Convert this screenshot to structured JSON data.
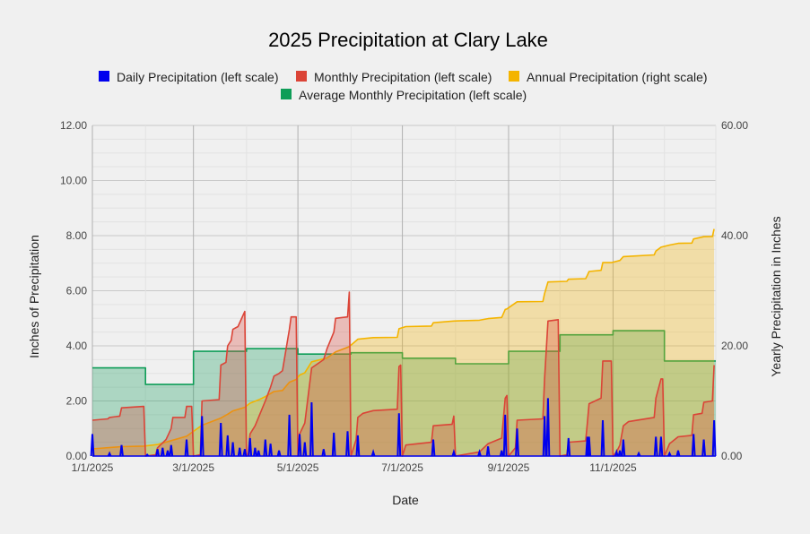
{
  "chart_data": {
    "type": "area",
    "title": "2025 Precipitation at Clary Lake",
    "xlabel": "Date",
    "ylabel_left": "Inches of Precipitation",
    "ylabel_right": "Yearly Precipitation in Inches",
    "left_axis": {
      "min": 0,
      "max": 12,
      "ticks": [
        "0.00",
        "2.00",
        "4.00",
        "6.00",
        "8.00",
        "10.00",
        "12.00"
      ]
    },
    "right_axis": {
      "min": 0,
      "max": 60,
      "ticks": [
        "0.00",
        "20.00",
        "40.00",
        "60.00"
      ]
    },
    "x_range": [
      "2025-01-01",
      "2025-12-31"
    ],
    "x_ticks": [
      {
        "date": "2025-01-01",
        "label": "1/1/2025"
      },
      {
        "date": "2025-03-01",
        "label": "3/1/2025"
      },
      {
        "date": "2025-05-01",
        "label": "5/1/2025"
      },
      {
        "date": "2025-07-01",
        "label": "7/1/2025"
      },
      {
        "date": "2025-09-01",
        "label": "9/1/2025"
      },
      {
        "date": "2025-11-01",
        "label": "11/1/2025"
      }
    ],
    "grid": true,
    "legend_position": "top",
    "series": [
      {
        "name": "Daily Precipitation (left scale)",
        "color": "#0000ee",
        "axis": "left",
        "points": [
          [
            "2025-01-01",
            0.8
          ],
          [
            "2025-01-11",
            0.1
          ],
          [
            "2025-01-18",
            0.4
          ],
          [
            "2025-02-02",
            0.05
          ],
          [
            "2025-02-08",
            0.25
          ],
          [
            "2025-02-11",
            0.3
          ],
          [
            "2025-02-14",
            0.2
          ],
          [
            "2025-02-16",
            0.4
          ],
          [
            "2025-02-25",
            0.6
          ],
          [
            "2025-03-06",
            1.45
          ],
          [
            "2025-03-17",
            1.2
          ],
          [
            "2025-03-21",
            0.75
          ],
          [
            "2025-03-24",
            0.5
          ],
          [
            "2025-03-28",
            0.3
          ],
          [
            "2025-03-31",
            0.25
          ],
          [
            "2025-04-03",
            0.65
          ],
          [
            "2025-04-06",
            0.3
          ],
          [
            "2025-04-08",
            0.2
          ],
          [
            "2025-04-12",
            0.6
          ],
          [
            "2025-04-15",
            0.45
          ],
          [
            "2025-04-20",
            0.2
          ],
          [
            "2025-04-26",
            1.5
          ],
          [
            "2025-05-02",
            0.8
          ],
          [
            "2025-05-05",
            0.5
          ],
          [
            "2025-05-09",
            1.95
          ],
          [
            "2025-05-16",
            0.25
          ],
          [
            "2025-05-22",
            0.85
          ],
          [
            "2025-05-30",
            0.9
          ],
          [
            "2025-06-05",
            0.75
          ],
          [
            "2025-06-14",
            0.15
          ],
          [
            "2025-06-29",
            1.55
          ],
          [
            "2025-07-19",
            0.6
          ],
          [
            "2025-07-31",
            0.15
          ],
          [
            "2025-08-15",
            0.15
          ],
          [
            "2025-08-20",
            0.35
          ],
          [
            "2025-08-28",
            0.2
          ],
          [
            "2025-08-30",
            1.5
          ],
          [
            "2025-09-06",
            1.0
          ],
          [
            "2025-09-22",
            1.45
          ],
          [
            "2025-09-24",
            2.1
          ],
          [
            "2025-10-06",
            0.65
          ],
          [
            "2025-10-17",
            0.7
          ],
          [
            "2025-10-18",
            0.7
          ],
          [
            "2025-10-26",
            1.3
          ],
          [
            "2025-11-03",
            0.15
          ],
          [
            "2025-11-05",
            0.2
          ],
          [
            "2025-11-07",
            0.6
          ],
          [
            "2025-11-16",
            0.1
          ],
          [
            "2025-11-26",
            0.7
          ],
          [
            "2025-11-29",
            0.7
          ],
          [
            "2025-12-04",
            0.1
          ],
          [
            "2025-12-09",
            0.2
          ],
          [
            "2025-12-18",
            0.8
          ],
          [
            "2025-12-24",
            0.6
          ],
          [
            "2025-12-30",
            1.3
          ]
        ]
      },
      {
        "name": "Monthly Precipitation (left scale)",
        "color": "#db4437",
        "axis": "left",
        "points": [
          [
            "2025-01-01",
            1.3
          ],
          [
            "2025-01-10",
            1.35
          ],
          [
            "2025-01-11",
            1.4
          ],
          [
            "2025-01-17",
            1.45
          ],
          [
            "2025-01-18",
            1.75
          ],
          [
            "2025-01-31",
            1.8
          ],
          [
            "2025-02-01",
            0.0
          ],
          [
            "2025-02-07",
            0.05
          ],
          [
            "2025-02-08",
            0.3
          ],
          [
            "2025-02-13",
            0.6
          ],
          [
            "2025-02-16",
            1.0
          ],
          [
            "2025-02-17",
            1.4
          ],
          [
            "2025-02-24",
            1.4
          ],
          [
            "2025-02-25",
            1.8
          ],
          [
            "2025-02-28",
            1.8
          ],
          [
            "2025-03-01",
            0.0
          ],
          [
            "2025-03-05",
            0.05
          ],
          [
            "2025-03-06",
            2.0
          ],
          [
            "2025-03-16",
            2.05
          ],
          [
            "2025-03-17",
            3.3
          ],
          [
            "2025-03-20",
            3.4
          ],
          [
            "2025-03-21",
            4.0
          ],
          [
            "2025-03-23",
            4.2
          ],
          [
            "2025-03-24",
            4.6
          ],
          [
            "2025-03-27",
            4.7
          ],
          [
            "2025-03-31",
            5.25
          ],
          [
            "2025-04-01",
            0.0
          ],
          [
            "2025-04-02",
            0.1
          ],
          [
            "2025-04-03",
            0.8
          ],
          [
            "2025-04-06",
            1.1
          ],
          [
            "2025-04-08",
            1.4
          ],
          [
            "2025-04-12",
            2.0
          ],
          [
            "2025-04-15",
            2.5
          ],
          [
            "2025-04-17",
            2.9
          ],
          [
            "2025-04-20",
            3.0
          ],
          [
            "2025-04-22",
            3.1
          ],
          [
            "2025-04-26",
            4.6
          ],
          [
            "2025-04-27",
            5.05
          ],
          [
            "2025-04-30",
            5.05
          ],
          [
            "2025-05-01",
            0.0
          ],
          [
            "2025-05-02",
            0.8
          ],
          [
            "2025-05-05",
            1.2
          ],
          [
            "2025-05-09",
            3.2
          ],
          [
            "2025-05-16",
            3.5
          ],
          [
            "2025-05-18",
            3.9
          ],
          [
            "2025-05-22",
            4.5
          ],
          [
            "2025-05-23",
            5.0
          ],
          [
            "2025-05-30",
            5.05
          ],
          [
            "2025-05-31",
            5.95
          ],
          [
            "2025-06-01",
            0.0
          ],
          [
            "2025-06-04",
            0.6
          ],
          [
            "2025-06-05",
            1.4
          ],
          [
            "2025-06-08",
            1.55
          ],
          [
            "2025-06-14",
            1.65
          ],
          [
            "2025-06-28",
            1.7
          ],
          [
            "2025-06-29",
            3.25
          ],
          [
            "2025-06-30",
            3.3
          ],
          [
            "2025-07-01",
            0.0
          ],
          [
            "2025-07-03",
            0.4
          ],
          [
            "2025-07-18",
            0.5
          ],
          [
            "2025-07-19",
            1.1
          ],
          [
            "2025-07-30",
            1.15
          ],
          [
            "2025-07-31",
            1.45
          ],
          [
            "2025-08-01",
            0.0
          ],
          [
            "2025-08-15",
            0.15
          ],
          [
            "2025-08-20",
            0.45
          ],
          [
            "2025-08-28",
            0.65
          ],
          [
            "2025-08-30",
            2.1
          ],
          [
            "2025-08-31",
            2.2
          ],
          [
            "2025-09-01",
            0.0
          ],
          [
            "2025-09-05",
            0.3
          ],
          [
            "2025-09-06",
            1.3
          ],
          [
            "2025-09-21",
            1.35
          ],
          [
            "2025-09-22",
            2.8
          ],
          [
            "2025-09-24",
            4.9
          ],
          [
            "2025-09-30",
            4.95
          ],
          [
            "2025-10-01",
            0.0
          ],
          [
            "2025-10-05",
            0.05
          ],
          [
            "2025-10-06",
            0.5
          ],
          [
            "2025-10-16",
            0.55
          ],
          [
            "2025-10-17",
            1.2
          ],
          [
            "2025-10-18",
            1.9
          ],
          [
            "2025-10-25",
            2.1
          ],
          [
            "2025-10-26",
            3.45
          ],
          [
            "2025-10-31",
            3.45
          ],
          [
            "2025-11-01",
            0.0
          ],
          [
            "2025-11-03",
            0.15
          ],
          [
            "2025-11-05",
            0.4
          ],
          [
            "2025-11-07",
            1.1
          ],
          [
            "2025-11-10",
            1.25
          ],
          [
            "2025-11-25",
            1.4
          ],
          [
            "2025-11-26",
            2.1
          ],
          [
            "2025-11-29",
            2.8
          ],
          [
            "2025-11-30",
            2.8
          ],
          [
            "2025-12-01",
            0.0
          ],
          [
            "2025-12-04",
            0.45
          ],
          [
            "2025-12-09",
            0.7
          ],
          [
            "2025-12-17",
            0.75
          ],
          [
            "2025-12-18",
            1.5
          ],
          [
            "2025-12-23",
            1.55
          ],
          [
            "2025-12-24",
            1.95
          ],
          [
            "2025-12-29",
            2.0
          ],
          [
            "2025-12-30",
            3.3
          ]
        ]
      },
      {
        "name": "Annual Precipitation (right scale)",
        "color": "#f4b400",
        "axis": "right",
        "points": [
          [
            "2025-01-01",
            1.3
          ],
          [
            "2025-01-18",
            1.7
          ],
          [
            "2025-01-31",
            1.8
          ],
          [
            "2025-02-08",
            2.1
          ],
          [
            "2025-02-16",
            2.8
          ],
          [
            "2025-02-25",
            3.6
          ],
          [
            "2025-03-06",
            5.6
          ],
          [
            "2025-03-17",
            6.9
          ],
          [
            "2025-03-21",
            7.6
          ],
          [
            "2025-03-24",
            8.2
          ],
          [
            "2025-03-31",
            8.85
          ],
          [
            "2025-04-03",
            9.6
          ],
          [
            "2025-04-08",
            10.2
          ],
          [
            "2025-04-12",
            10.8
          ],
          [
            "2025-04-17",
            11.7
          ],
          [
            "2025-04-22",
            11.9
          ],
          [
            "2025-04-26",
            13.4
          ],
          [
            "2025-04-30",
            13.9
          ],
          [
            "2025-05-02",
            14.7
          ],
          [
            "2025-05-05",
            15.1
          ],
          [
            "2025-05-09",
            17.1
          ],
          [
            "2025-05-18",
            17.8
          ],
          [
            "2025-05-23",
            18.9
          ],
          [
            "2025-05-31",
            19.85
          ],
          [
            "2025-06-05",
            21.2
          ],
          [
            "2025-06-14",
            21.5
          ],
          [
            "2025-06-28",
            21.55
          ],
          [
            "2025-06-29",
            23.1
          ],
          [
            "2025-07-03",
            23.5
          ],
          [
            "2025-07-18",
            23.6
          ],
          [
            "2025-07-19",
            24.2
          ],
          [
            "2025-07-31",
            24.5
          ],
          [
            "2025-08-15",
            24.65
          ],
          [
            "2025-08-20",
            24.95
          ],
          [
            "2025-08-28",
            25.15
          ],
          [
            "2025-08-30",
            26.6
          ],
          [
            "2025-08-31",
            26.7
          ],
          [
            "2025-09-06",
            28.0
          ],
          [
            "2025-09-21",
            28.05
          ],
          [
            "2025-09-22",
            29.5
          ],
          [
            "2025-09-24",
            31.6
          ],
          [
            "2025-10-05",
            31.7
          ],
          [
            "2025-10-06",
            32.1
          ],
          [
            "2025-10-16",
            32.2
          ],
          [
            "2025-10-17",
            32.8
          ],
          [
            "2025-10-18",
            33.5
          ],
          [
            "2025-10-25",
            33.7
          ],
          [
            "2025-10-26",
            35.1
          ],
          [
            "2025-10-31",
            35.1
          ],
          [
            "2025-11-05",
            35.5
          ],
          [
            "2025-11-07",
            36.2
          ],
          [
            "2025-11-25",
            36.5
          ],
          [
            "2025-11-26",
            37.2
          ],
          [
            "2025-11-29",
            37.9
          ],
          [
            "2025-12-04",
            38.3
          ],
          [
            "2025-12-09",
            38.6
          ],
          [
            "2025-12-17",
            38.65
          ],
          [
            "2025-12-18",
            39.4
          ],
          [
            "2025-12-24",
            39.8
          ],
          [
            "2025-12-29",
            39.85
          ],
          [
            "2025-12-30",
            41.2
          ]
        ]
      },
      {
        "name": "Average Monthly Precipitation (left scale)",
        "color": "#0f9d58",
        "axis": "left",
        "step": true,
        "points": [
          [
            "2025-01-01",
            3.2
          ],
          [
            "2025-02-01",
            2.6
          ],
          [
            "2025-03-01",
            3.8
          ],
          [
            "2025-04-01",
            3.9
          ],
          [
            "2025-05-01",
            3.7
          ],
          [
            "2025-06-01",
            3.75
          ],
          [
            "2025-07-01",
            3.55
          ],
          [
            "2025-08-01",
            3.35
          ],
          [
            "2025-09-01",
            3.8
          ],
          [
            "2025-10-01",
            4.4
          ],
          [
            "2025-11-01",
            4.55
          ],
          [
            "2025-12-01",
            3.45
          ],
          [
            "2025-12-31",
            3.45
          ]
        ]
      }
    ]
  }
}
